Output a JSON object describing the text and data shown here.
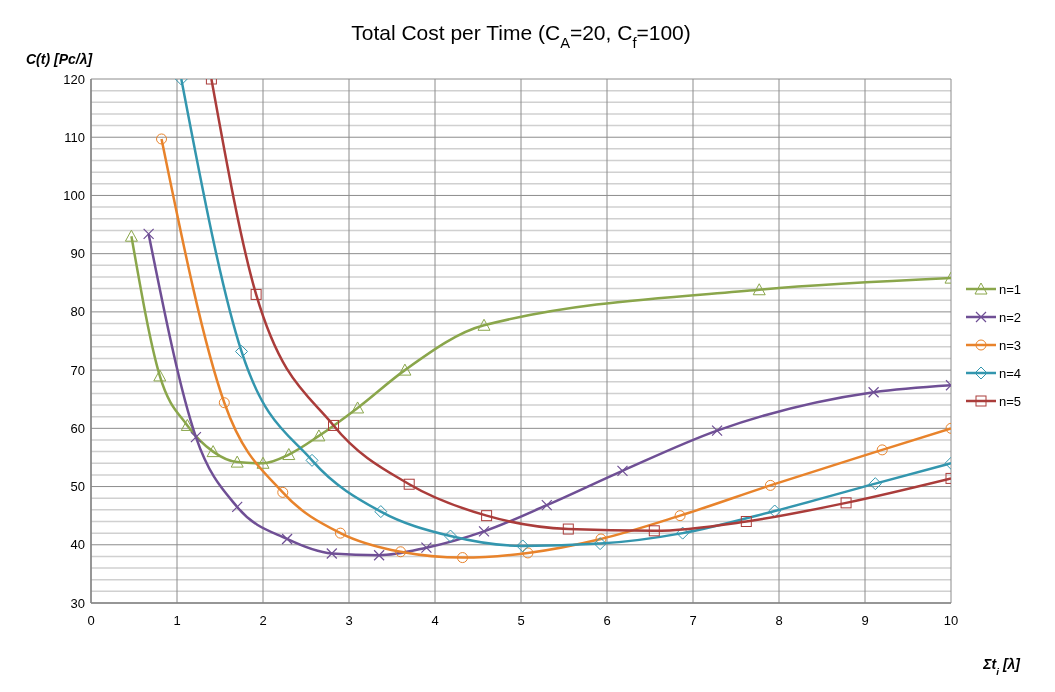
{
  "chart_data": {
    "type": "line",
    "title": "Total Cost per Time (C$_{A}$=20, C$_{f}$=100)",
    "xlabel": "Σt$_{i}$  [λ]",
    "ylabel": "C(t)  [Pc/λ]",
    "xlim": [
      0,
      10
    ],
    "xticks": [
      0,
      1,
      2,
      3,
      4,
      5,
      6,
      7,
      8,
      9,
      10
    ],
    "ylim": [
      30,
      120
    ],
    "yticks": [
      30,
      {
        "value": 32,
        "label": null
      },
      {
        "value": 34,
        "label": null
      },
      {
        "value": 36,
        "label": null
      },
      {
        "value": 38,
        "label": null
      },
      40,
      {
        "value": 42,
        "label": null
      },
      {
        "value": 44,
        "label": null
      },
      {
        "value": 46,
        "label": null
      },
      {
        "value": 48,
        "label": null
      },
      50,
      {
        "value": 52,
        "label": null
      },
      {
        "value": 54,
        "label": null
      },
      {
        "value": 56,
        "label": null
      },
      {
        "value": 58,
        "label": null
      },
      60,
      {
        "value": 62,
        "label": null
      },
      {
        "value": 64,
        "label": null
      },
      {
        "value": 66,
        "label": null
      },
      {
        "value": 68,
        "label": null
      },
      70,
      {
        "value": 72,
        "label": null
      },
      {
        "value": 74,
        "label": null
      },
      {
        "value": 76,
        "label": null
      },
      {
        "value": 78,
        "label": null
      },
      80,
      {
        "value": 82,
        "label": null
      },
      {
        "value": 84,
        "label": null
      },
      {
        "value": 86,
        "label": null
      },
      {
        "value": 88,
        "label": null
      },
      90,
      {
        "value": 92,
        "label": null
      },
      {
        "value": 94,
        "label": null
      },
      {
        "value": 96,
        "label": null
      },
      {
        "value": 98,
        "label": null
      },
      100,
      {
        "value": 102,
        "label": null
      },
      {
        "value": 104,
        "label": null
      },
      {
        "value": 106,
        "label": null
      },
      {
        "value": 108,
        "label": null
      },
      110,
      {
        "value": 112,
        "label": null
      },
      {
        "value": 114,
        "label": null
      },
      {
        "value": 116,
        "label": null
      },
      {
        "value": 118,
        "label": null
      },
      120
    ],
    "grid": true,
    "legend": "right",
    "line_style": "solid",
    "series": [
      {
        "name": "n=1",
        "color": "#8aa64b",
        "marker": "triangle",
        "x": [
          0.47,
          0.8,
          1.12,
          1.42,
          1.7,
          2.0,
          2.3,
          2.65,
          3.1,
          3.65,
          4.57,
          7.77,
          10
        ],
        "values": [
          93,
          69,
          60.5,
          56,
          54.2,
          54,
          55.5,
          58.7,
          63.5,
          70,
          77.7,
          83.8,
          85.8
        ]
      },
      {
        "name": "n=2",
        "color": "#6f4f95",
        "marker": "cross",
        "x": [
          0.67,
          1.22,
          1.7,
          2.28,
          2.8,
          3.35,
          3.9,
          4.57,
          5.3,
          6.18,
          7.28,
          9.1,
          10
        ],
        "values": [
          93.4,
          58.5,
          46.5,
          41,
          38.5,
          38.2,
          39.5,
          42.3,
          46.8,
          52.7,
          59.6,
          66.2,
          67.4
        ]
      },
      {
        "name": "n=3",
        "color": "#e8832b",
        "marker": "circle",
        "x": [
          0.82,
          1.55,
          2.23,
          2.9,
          3.6,
          4.32,
          5.08,
          5.93,
          6.85,
          7.9,
          9.2,
          10
        ],
        "values": [
          109.7,
          64.4,
          49,
          42,
          38.8,
          37.8,
          38.6,
          41,
          45,
          50.2,
          56.3,
          60
        ]
      },
      {
        "name": "n=4",
        "color": "#3396ae",
        "marker": "diamond",
        "x": [
          1.05,
          1.75,
          2.57,
          3.37,
          4.18,
          5.02,
          5.92,
          6.88,
          7.95,
          9.12,
          10
        ],
        "values": [
          120,
          73.2,
          54.5,
          45.7,
          41.5,
          39.8,
          40.2,
          42,
          45.8,
          50.5,
          54
        ]
      },
      {
        "name": "n=5",
        "color": "#aa3c3a",
        "marker": "square",
        "x": [
          1.4,
          1.92,
          2.82,
          3.7,
          4.6,
          5.55,
          6.55,
          7.62,
          8.78,
          10
        ],
        "values": [
          120,
          83,
          60.5,
          50.4,
          45,
          42.7,
          42.4,
          44,
          47.2,
          51.4
        ]
      }
    ]
  }
}
